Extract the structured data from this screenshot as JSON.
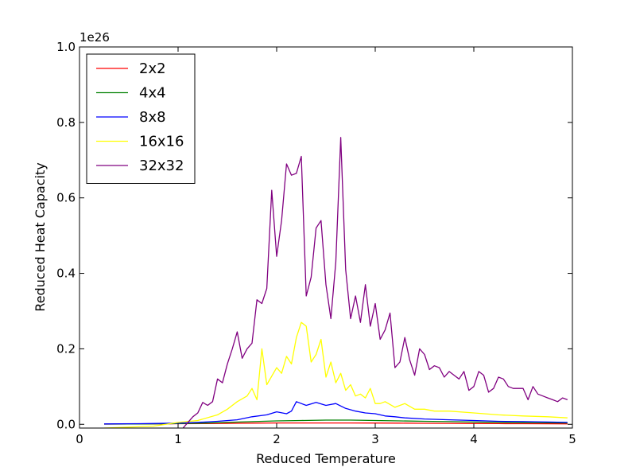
{
  "chart_data": {
    "type": "line",
    "title": "",
    "xlabel": "Reduced Temperature",
    "ylabel": "Reduced Heat Capacity",
    "offset_text": "1e26",
    "xlim": [
      0,
      5
    ],
    "ylim": [
      -0.01,
      1.0
    ],
    "xticks": [
      0,
      1,
      2,
      3,
      4,
      5
    ],
    "xtick_labels": [
      "0",
      "1",
      "2",
      "3",
      "4",
      "5"
    ],
    "yticks": [
      0.0,
      0.2,
      0.4,
      0.6,
      0.8,
      1.0
    ],
    "ytick_labels": [
      "0.0",
      "0.2",
      "0.4",
      "0.6",
      "0.8",
      "1.0"
    ],
    "grid": false,
    "legend_position": "top-left",
    "series": [
      {
        "name": "2x2",
        "color": "#ff0000",
        "x": [
          0.25,
          0.5,
          0.75,
          1.0,
          1.25,
          1.5,
          1.75,
          2.0,
          2.25,
          2.5,
          2.75,
          3.0,
          3.25,
          3.5,
          3.75,
          4.0,
          4.25,
          4.5,
          4.75,
          4.95
        ],
        "y": [
          0.0005,
          0.0007,
          0.001,
          0.0015,
          0.002,
          0.0025,
          0.003,
          0.0034,
          0.0036,
          0.0036,
          0.0035,
          0.0033,
          0.003,
          0.0027,
          0.0024,
          0.0021,
          0.0018,
          0.0016,
          0.0014,
          0.0012
        ]
      },
      {
        "name": "4x4",
        "color": "#008000",
        "x": [
          0.25,
          0.5,
          0.75,
          1.0,
          1.25,
          1.5,
          1.75,
          2.0,
          2.25,
          2.5,
          2.75,
          3.0,
          3.25,
          3.5,
          3.75,
          4.0,
          4.25,
          4.5,
          4.75,
          4.95
        ],
        "y": [
          0.0005,
          0.0008,
          0.0012,
          0.002,
          0.003,
          0.005,
          0.007,
          0.009,
          0.01,
          0.011,
          0.011,
          0.01,
          0.009,
          0.008,
          0.007,
          0.006,
          0.005,
          0.0045,
          0.004,
          0.0035
        ]
      },
      {
        "name": "8x8",
        "color": "#0000ff",
        "x": [
          0.25,
          0.6,
          1.0,
          1.2,
          1.4,
          1.6,
          1.75,
          1.9,
          2.0,
          2.1,
          2.15,
          2.2,
          2.3,
          2.4,
          2.5,
          2.6,
          2.7,
          2.8,
          2.9,
          3.0,
          3.1,
          3.2,
          3.3,
          3.5,
          3.75,
          4.0,
          4.25,
          4.5,
          4.75,
          4.95
        ],
        "y": [
          0.001,
          0.0015,
          0.003,
          0.005,
          0.008,
          0.012,
          0.02,
          0.025,
          0.033,
          0.028,
          0.035,
          0.06,
          0.05,
          0.058,
          0.05,
          0.055,
          0.042,
          0.035,
          0.03,
          0.028,
          0.022,
          0.02,
          0.017,
          0.014,
          0.012,
          0.01,
          0.008,
          0.007,
          0.006,
          0.005
        ]
      },
      {
        "name": "16x16",
        "color": "#ffff00",
        "x": [
          0.25,
          0.75,
          1.0,
          1.2,
          1.4,
          1.5,
          1.6,
          1.7,
          1.75,
          1.8,
          1.85,
          1.9,
          2.0,
          2.05,
          2.1,
          2.15,
          2.2,
          2.25,
          2.3,
          2.35,
          2.4,
          2.45,
          2.5,
          2.55,
          2.6,
          2.65,
          2.7,
          2.75,
          2.8,
          2.85,
          2.9,
          2.95,
          3.0,
          3.05,
          3.1,
          3.2,
          3.3,
          3.4,
          3.5,
          3.6,
          3.75,
          4.0,
          4.25,
          4.5,
          4.75,
          4.95
        ],
        "y": [
          -0.01,
          -0.005,
          0.005,
          0.01,
          0.025,
          0.04,
          0.06,
          0.075,
          0.095,
          0.065,
          0.2,
          0.105,
          0.15,
          0.135,
          0.18,
          0.16,
          0.23,
          0.27,
          0.26,
          0.165,
          0.185,
          0.225,
          0.125,
          0.165,
          0.11,
          0.135,
          0.09,
          0.105,
          0.075,
          0.08,
          0.07,
          0.095,
          0.055,
          0.055,
          0.06,
          0.045,
          0.055,
          0.04,
          0.04,
          0.035,
          0.035,
          0.03,
          0.025,
          0.022,
          0.02,
          0.017
        ]
      },
      {
        "name": "32x32",
        "color": "#800080",
        "x": [
          1.05,
          1.1,
          1.15,
          1.2,
          1.25,
          1.3,
          1.35,
          1.4,
          1.45,
          1.5,
          1.55,
          1.6,
          1.65,
          1.7,
          1.75,
          1.8,
          1.85,
          1.9,
          1.95,
          2.0,
          2.05,
          2.1,
          2.15,
          2.2,
          2.25,
          2.3,
          2.35,
          2.4,
          2.45,
          2.5,
          2.55,
          2.6,
          2.65,
          2.7,
          2.75,
          2.8,
          2.85,
          2.9,
          2.95,
          3.0,
          3.05,
          3.1,
          3.15,
          3.2,
          3.25,
          3.3,
          3.35,
          3.4,
          3.45,
          3.5,
          3.55,
          3.6,
          3.65,
          3.7,
          3.75,
          3.8,
          3.85,
          3.9,
          3.95,
          4.0,
          4.05,
          4.1,
          4.15,
          4.2,
          4.25,
          4.3,
          4.35,
          4.4,
          4.45,
          4.5,
          4.55,
          4.6,
          4.65,
          4.7,
          4.75,
          4.8,
          4.85,
          4.9,
          4.95
        ],
        "y": [
          -0.01,
          0.005,
          0.02,
          0.03,
          0.058,
          0.05,
          0.06,
          0.12,
          0.11,
          0.16,
          0.2,
          0.245,
          0.175,
          0.2,
          0.215,
          0.33,
          0.32,
          0.36,
          0.62,
          0.445,
          0.54,
          0.69,
          0.66,
          0.665,
          0.71,
          0.34,
          0.39,
          0.52,
          0.54,
          0.37,
          0.28,
          0.43,
          0.76,
          0.41,
          0.28,
          0.34,
          0.27,
          0.37,
          0.26,
          0.32,
          0.225,
          0.25,
          0.295,
          0.15,
          0.165,
          0.23,
          0.17,
          0.13,
          0.2,
          0.185,
          0.145,
          0.155,
          0.15,
          0.125,
          0.14,
          0.13,
          0.12,
          0.14,
          0.09,
          0.1,
          0.14,
          0.13,
          0.085,
          0.095,
          0.125,
          0.12,
          0.1,
          0.095,
          0.095,
          0.095,
          0.065,
          0.1,
          0.08,
          0.075,
          0.07,
          0.065,
          0.06,
          0.07,
          0.065
        ]
      }
    ]
  }
}
